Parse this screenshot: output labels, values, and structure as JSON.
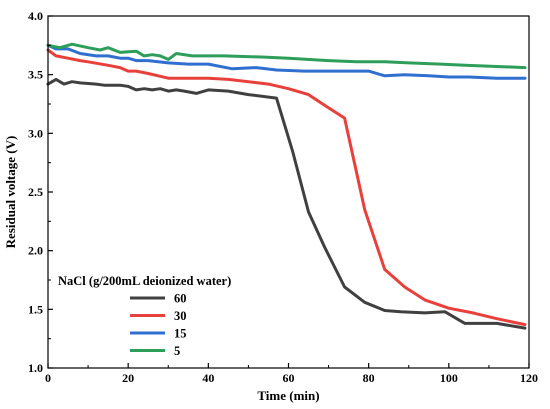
{
  "chart_data": {
    "type": "line",
    "title": "",
    "xlabel": "Time (min)",
    "ylabel": "Residual voltage (V)",
    "xlim": [
      0,
      120
    ],
    "ylim": [
      1.0,
      4.0
    ],
    "x_ticks": [
      "0",
      "20",
      "40",
      "60",
      "80",
      "100",
      "120"
    ],
    "y_ticks": [
      "1.0",
      "1.5",
      "2.0",
      "2.5",
      "3.0",
      "3.5",
      "4.0"
    ],
    "grid": false,
    "legend": {
      "title": "NaCl (g/200mL deionized water)",
      "placement": "lower-left"
    },
    "series": [
      {
        "name": "60",
        "color": "#404040",
        "points": [
          [
            0,
            3.42
          ],
          [
            2,
            3.46
          ],
          [
            4,
            3.42
          ],
          [
            6,
            3.44
          ],
          [
            8,
            3.43
          ],
          [
            12,
            3.42
          ],
          [
            14,
            3.41
          ],
          [
            18,
            3.41
          ],
          [
            20,
            3.4
          ],
          [
            22,
            3.37
          ],
          [
            24,
            3.38
          ],
          [
            26,
            3.37
          ],
          [
            28,
            3.38
          ],
          [
            30,
            3.36
          ],
          [
            32,
            3.37
          ],
          [
            34,
            3.36
          ],
          [
            37,
            3.34
          ],
          [
            40,
            3.37
          ],
          [
            45,
            3.36
          ],
          [
            50,
            3.33
          ],
          [
            57,
            3.3
          ],
          [
            61,
            2.85
          ],
          [
            65,
            2.33
          ],
          [
            69,
            2.03
          ],
          [
            74,
            1.69
          ],
          [
            79,
            1.56
          ],
          [
            84,
            1.49
          ],
          [
            88,
            1.48
          ],
          [
            94,
            1.47
          ],
          [
            99,
            1.48
          ],
          [
            104,
            1.38
          ],
          [
            112,
            1.38
          ],
          [
            119,
            1.34
          ]
        ]
      },
      {
        "name": "30",
        "color": "#e8403a",
        "points": [
          [
            0,
            3.71
          ],
          [
            2,
            3.66
          ],
          [
            5,
            3.64
          ],
          [
            8,
            3.62
          ],
          [
            10,
            3.61
          ],
          [
            15,
            3.58
          ],
          [
            18,
            3.56
          ],
          [
            20,
            3.53
          ],
          [
            22,
            3.53
          ],
          [
            25,
            3.51
          ],
          [
            30,
            3.47
          ],
          [
            40,
            3.47
          ],
          [
            45,
            3.46
          ],
          [
            55,
            3.42
          ],
          [
            60,
            3.38
          ],
          [
            65,
            3.33
          ],
          [
            69,
            3.24
          ],
          [
            74,
            3.13
          ],
          [
            79,
            2.35
          ],
          [
            84,
            1.84
          ],
          [
            89,
            1.69
          ],
          [
            94,
            1.58
          ],
          [
            100,
            1.51
          ],
          [
            106,
            1.47
          ],
          [
            112,
            1.42
          ],
          [
            119,
            1.37
          ]
        ]
      },
      {
        "name": "15",
        "color": "#2f6fd0",
        "points": [
          [
            0,
            3.75
          ],
          [
            2,
            3.72
          ],
          [
            5,
            3.72
          ],
          [
            8,
            3.68
          ],
          [
            12,
            3.66
          ],
          [
            15,
            3.66
          ],
          [
            18,
            3.64
          ],
          [
            20,
            3.64
          ],
          [
            22,
            3.62
          ],
          [
            25,
            3.62
          ],
          [
            30,
            3.6
          ],
          [
            35,
            3.59
          ],
          [
            40,
            3.59
          ],
          [
            46,
            3.55
          ],
          [
            52,
            3.56
          ],
          [
            57,
            3.54
          ],
          [
            64,
            3.53
          ],
          [
            70,
            3.53
          ],
          [
            76,
            3.53
          ],
          [
            80,
            3.53
          ],
          [
            84,
            3.49
          ],
          [
            89,
            3.5
          ],
          [
            95,
            3.49
          ],
          [
            100,
            3.48
          ],
          [
            105,
            3.48
          ],
          [
            112,
            3.47
          ],
          [
            119,
            3.47
          ]
        ]
      },
      {
        "name": "5",
        "color": "#2e9e5b",
        "points": [
          [
            0,
            3.75
          ],
          [
            3,
            3.73
          ],
          [
            6,
            3.76
          ],
          [
            10,
            3.73
          ],
          [
            13,
            3.71
          ],
          [
            15,
            3.73
          ],
          [
            18,
            3.69
          ],
          [
            22,
            3.7
          ],
          [
            24,
            3.66
          ],
          [
            26,
            3.67
          ],
          [
            28,
            3.66
          ],
          [
            30,
            3.63
          ],
          [
            32,
            3.68
          ],
          [
            36,
            3.66
          ],
          [
            44,
            3.66
          ],
          [
            54,
            3.65
          ],
          [
            60,
            3.64
          ],
          [
            70,
            3.62
          ],
          [
            77,
            3.61
          ],
          [
            84,
            3.61
          ],
          [
            90,
            3.6
          ],
          [
            98,
            3.59
          ],
          [
            104,
            3.58
          ],
          [
            112,
            3.57
          ],
          [
            119,
            3.56
          ]
        ]
      }
    ]
  }
}
